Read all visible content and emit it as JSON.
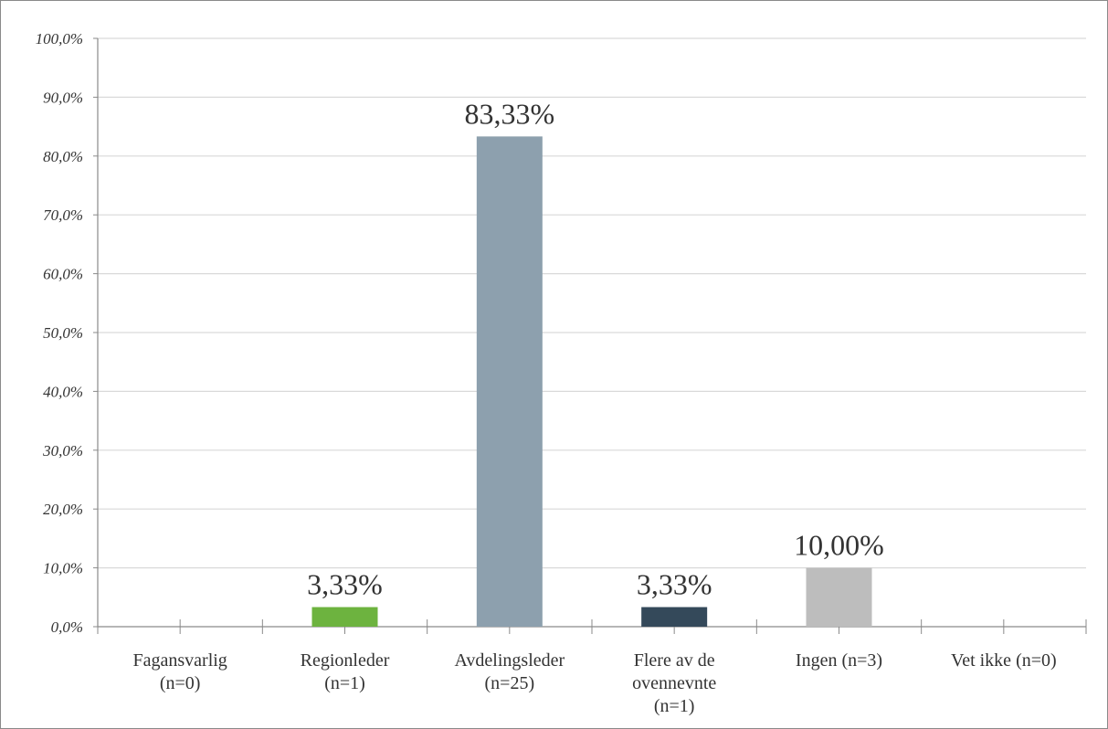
{
  "chart_data": {
    "type": "bar",
    "title": "",
    "xlabel": "",
    "ylabel": "",
    "ylim": [
      0,
      100
    ],
    "y_ticks": [
      0,
      10,
      20,
      30,
      40,
      50,
      60,
      70,
      80,
      90,
      100
    ],
    "y_tick_labels": [
      "0,0%",
      "10,0%",
      "20,0%",
      "30,0%",
      "40,0%",
      "50,0%",
      "60,0%",
      "70,0%",
      "80,0%",
      "90,0%",
      "100,0%"
    ],
    "grid": true,
    "legend": "none",
    "categories": [
      "Fagansvarlig (n=0)",
      "Regionleder (n=1)",
      "Avdelingsleder (n=25)",
      "Flere av de ovennevnte (n=1)",
      "Ingen (n=3)",
      "Vet ikke (n=0)"
    ],
    "category_label_lines": [
      [
        "Fagansvarlig",
        "(n=0)"
      ],
      [
        "Regionleder",
        "(n=1)"
      ],
      [
        "Avdelingsleder",
        "(n=25)"
      ],
      [
        "Flere av de",
        "ovennevnte",
        "(n=1)"
      ],
      [
        "Ingen (n=3)"
      ],
      [
        "Vet ikke (n=0)"
      ]
    ],
    "values": [
      0,
      3.33,
      83.33,
      3.33,
      10.0,
      0
    ],
    "data_labels": [
      "",
      "3,33%",
      "83,33%",
      "3,33%",
      "10,00%",
      ""
    ],
    "colors": [
      "#8da0ae",
      "#6db33f",
      "#8da0ae",
      "#34495a",
      "#bdbdbd",
      "#8da0ae"
    ],
    "grid_color": "#d9d9d9",
    "axis_color": "#8a8a8a"
  }
}
